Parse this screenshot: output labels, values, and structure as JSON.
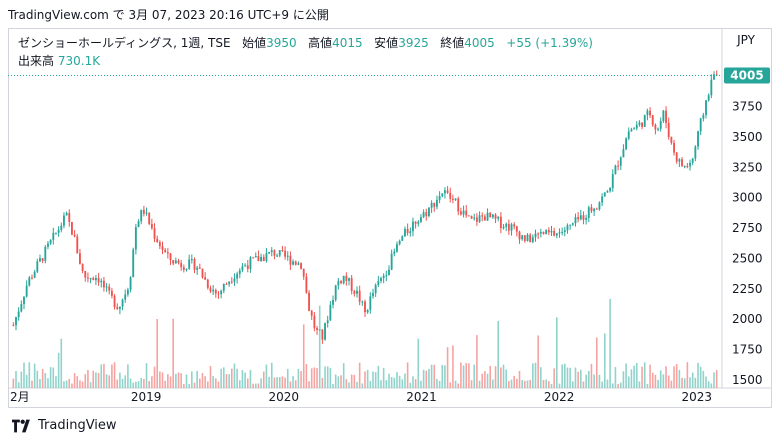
{
  "header": {
    "text": "TradingView.com で 3月 07, 2023 20:16 UTC+9 に公開"
  },
  "legend": {
    "symbol": "ゼンショーホールディングス, 1週, TSE",
    "open_label": "始値",
    "open": "3950",
    "high_label": "高値",
    "high": "4015",
    "low_label": "安値",
    "low": "3925",
    "close_label": "終値",
    "close": "4005",
    "change": "+55 (+1.39%)",
    "volume_label": "出来高",
    "volume": "730.1K"
  },
  "currency": "JPY",
  "last_price_tag": "4005",
  "footer": {
    "brand": "TradingView"
  },
  "colors": {
    "up": "#26a69a",
    "down": "#ef5350",
    "up_vol": "#8fd3cb",
    "down_vol": "#f5a3a1"
  },
  "chart_data": {
    "type": "candlestick",
    "interval": "1 week",
    "ylim": [
      1450,
      4100
    ],
    "yticks": [
      1500,
      1750,
      2000,
      2250,
      2500,
      2750,
      3000,
      3250,
      3500,
      3750
    ],
    "xticks": [
      "2月",
      "2019",
      "2020",
      "2021",
      "2022",
      "2023"
    ],
    "xtick_pos": [
      0.0,
      0.19,
      0.385,
      0.58,
      0.775,
      0.97
    ],
    "price_path": [
      [
        0.0,
        1950
      ],
      [
        0.02,
        2300
      ],
      [
        0.05,
        2600
      ],
      [
        0.075,
        2850
      ],
      [
        0.085,
        2700
      ],
      [
        0.1,
        2350
      ],
      [
        0.12,
        2350
      ],
      [
        0.135,
        2200
      ],
      [
        0.15,
        2100
      ],
      [
        0.165,
        2300
      ],
      [
        0.175,
        2800
      ],
      [
        0.185,
        2900
      ],
      [
        0.2,
        2700
      ],
      [
        0.22,
        2500
      ],
      [
        0.24,
        2450
      ],
      [
        0.26,
        2450
      ],
      [
        0.275,
        2300
      ],
      [
        0.29,
        2200
      ],
      [
        0.31,
        2350
      ],
      [
        0.33,
        2450
      ],
      [
        0.35,
        2500
      ],
      [
        0.37,
        2550
      ],
      [
        0.39,
        2500
      ],
      [
        0.41,
        2450
      ],
      [
        0.42,
        2100
      ],
      [
        0.43,
        1900
      ],
      [
        0.44,
        1850
      ],
      [
        0.45,
        2100
      ],
      [
        0.46,
        2300
      ],
      [
        0.47,
        2350
      ],
      [
        0.49,
        2200
      ],
      [
        0.5,
        2050
      ],
      [
        0.51,
        2200
      ],
      [
        0.53,
        2400
      ],
      [
        0.55,
        2650
      ],
      [
        0.57,
        2800
      ],
      [
        0.59,
        2900
      ],
      [
        0.61,
        3050
      ],
      [
        0.63,
        2950
      ],
      [
        0.65,
        2800
      ],
      [
        0.67,
        2850
      ],
      [
        0.69,
        2800
      ],
      [
        0.71,
        2750
      ],
      [
        0.73,
        2650
      ],
      [
        0.75,
        2700
      ],
      [
        0.77,
        2700
      ],
      [
        0.79,
        2750
      ],
      [
        0.81,
        2850
      ],
      [
        0.83,
        2950
      ],
      [
        0.845,
        3050
      ],
      [
        0.86,
        3300
      ],
      [
        0.875,
        3550
      ],
      [
        0.89,
        3600
      ],
      [
        0.905,
        3700
      ],
      [
        0.915,
        3550
      ],
      [
        0.925,
        3700
      ],
      [
        0.935,
        3450
      ],
      [
        0.945,
        3300
      ],
      [
        0.955,
        3250
      ],
      [
        0.965,
        3300
      ],
      [
        0.975,
        3550
      ],
      [
        0.985,
        3800
      ],
      [
        0.995,
        4005
      ]
    ],
    "last_close": 4005
  }
}
